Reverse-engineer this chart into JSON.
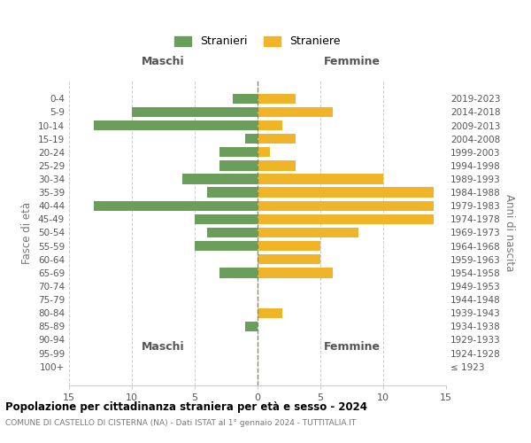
{
  "age_groups": [
    "100+",
    "95-99",
    "90-94",
    "85-89",
    "80-84",
    "75-79",
    "70-74",
    "65-69",
    "60-64",
    "55-59",
    "50-54",
    "45-49",
    "40-44",
    "35-39",
    "30-34",
    "25-29",
    "20-24",
    "15-19",
    "10-14",
    "5-9",
    "0-4"
  ],
  "birth_years": [
    "≤ 1923",
    "1924-1928",
    "1929-1933",
    "1934-1938",
    "1939-1943",
    "1944-1948",
    "1949-1953",
    "1954-1958",
    "1959-1963",
    "1964-1968",
    "1969-1973",
    "1974-1978",
    "1979-1983",
    "1984-1988",
    "1989-1993",
    "1994-1998",
    "1999-2003",
    "2004-2008",
    "2009-2013",
    "2014-2018",
    "2019-2023"
  ],
  "males": [
    0,
    0,
    0,
    1,
    0,
    0,
    0,
    3,
    0,
    5,
    4,
    5,
    13,
    4,
    6,
    3,
    3,
    1,
    13,
    10,
    2
  ],
  "females": [
    0,
    0,
    0,
    0,
    2,
    0,
    0,
    6,
    5,
    5,
    8,
    14,
    14,
    14,
    10,
    3,
    1,
    3,
    2,
    6,
    3
  ],
  "male_color": "#6a9e5a",
  "female_color": "#f0b429",
  "background_color": "#ffffff",
  "grid_color": "#cccccc",
  "title": "Popolazione per cittadinanza straniera per età e sesso - 2024",
  "subtitle": "COMUNE DI CASTELLO DI CISTERNA (NA) - Dati ISTAT al 1° gennaio 2024 - TUTTITALIA.IT",
  "xlabel_left": "Maschi",
  "xlabel_right": "Femmine",
  "ylabel_left": "Fasce di età",
  "ylabel_right": "Anni di nascita",
  "legend_male": "Stranieri",
  "legend_female": "Straniere",
  "xlim": 15
}
